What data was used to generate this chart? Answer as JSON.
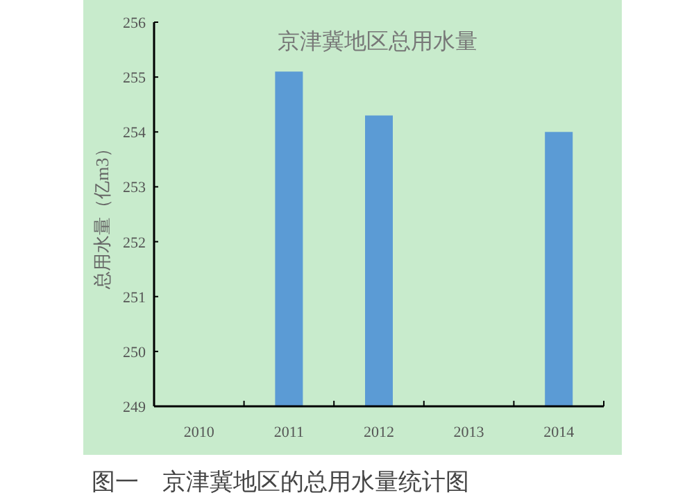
{
  "chart_data": {
    "type": "bar",
    "title": "京津冀地区总用水量",
    "ylabel": "总用水量（亿m3）",
    "categories": [
      "2010",
      "2011",
      "2012",
      "2013",
      "2014"
    ],
    "values": [
      null,
      255.1,
      254.3,
      null,
      254.0
    ],
    "color": "#5b9bd5",
    "ylim": [
      249,
      256
    ],
    "yticks": [
      249,
      250,
      251,
      252,
      253,
      254,
      255,
      256
    ],
    "annotations": [
      "图一　京津冀地区的总用水量统计图"
    ]
  }
}
